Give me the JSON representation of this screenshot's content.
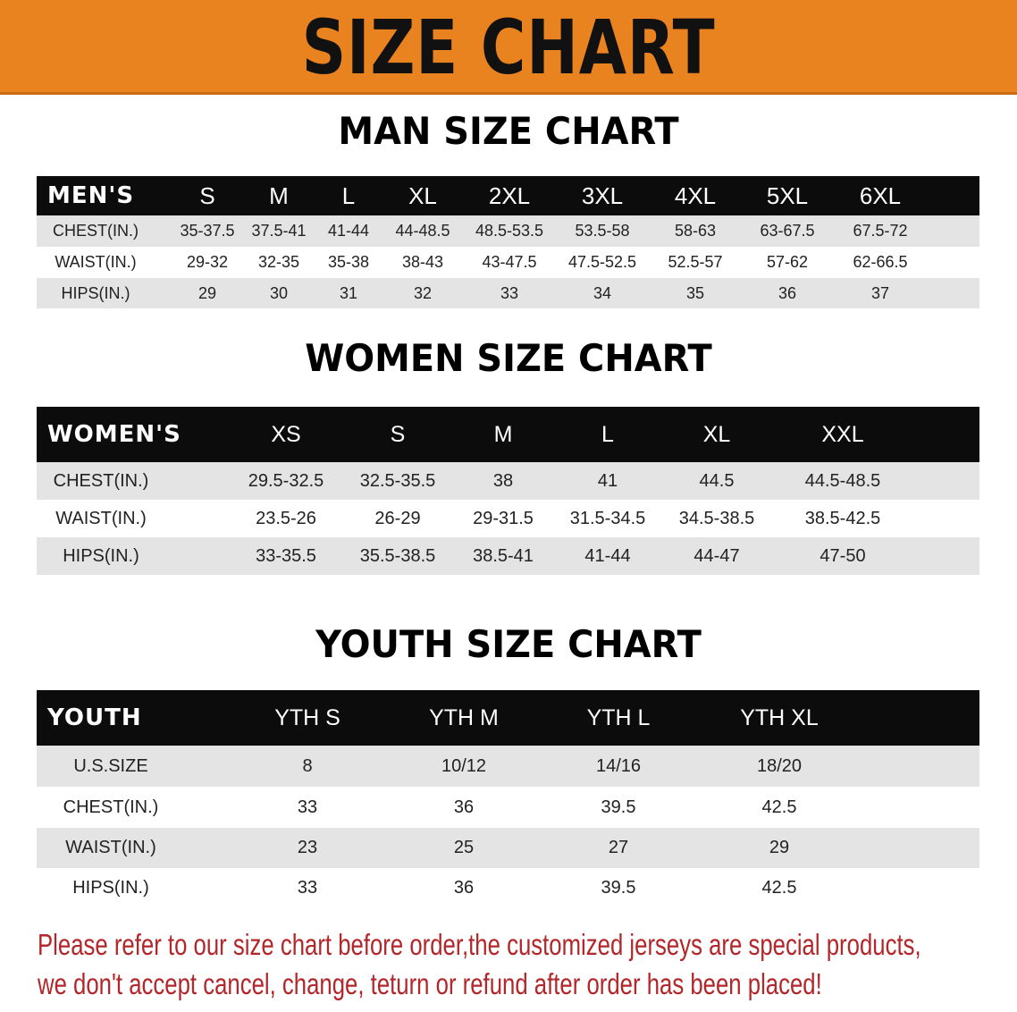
{
  "banner": {
    "title": "SIZE CHART",
    "color": "#e98320"
  },
  "men": {
    "title": "MAN SIZE CHART",
    "header": [
      "MEN'S",
      "S",
      "M",
      "L",
      "XL",
      "2XL",
      "3XL",
      "4XL",
      "5XL",
      "6XL"
    ],
    "rows": [
      [
        "CHEST(IN.)",
        "35-37.5",
        "37.5-41",
        "41-44",
        "44-48.5",
        "48.5-53.5",
        "53.5-58",
        "58-63",
        "63-67.5",
        "67.5-72"
      ],
      [
        "WAIST(IN.)",
        "29-32",
        "32-35",
        "35-38",
        "38-43",
        "43-47.5",
        "47.5-52.5",
        "52.5-57",
        "57-62",
        "62-66.5"
      ],
      [
        "HIPS(IN.)",
        "29",
        "30",
        "31",
        "32",
        "33",
        "34",
        "35",
        "36",
        "37"
      ]
    ]
  },
  "women": {
    "title": "WOMEN SIZE CHART",
    "header": [
      "WOMEN'S",
      "XS",
      "S",
      "M",
      "L",
      "XL",
      "XXL"
    ],
    "rows": [
      [
        "CHEST(IN.)",
        "29.5-32.5",
        "32.5-35.5",
        "38",
        "41",
        "44.5",
        "44.5-48.5"
      ],
      [
        "WAIST(IN.)",
        "23.5-26",
        "26-29",
        "29-31.5",
        "31.5-34.5",
        "34.5-38.5",
        "38.5-42.5"
      ],
      [
        "HIPS(IN.)",
        "33-35.5",
        "35.5-38.5",
        "38.5-41",
        "41-44",
        "44-47",
        "47-50"
      ]
    ]
  },
  "youth": {
    "title": "YOUTH SIZE CHART",
    "header": [
      "YOUTH",
      "YTH S",
      "YTH M",
      "YTH L",
      "YTH XL"
    ],
    "rows": [
      [
        "U.S.SIZE",
        "8",
        "10/12",
        "14/16",
        "18/20"
      ],
      [
        "CHEST(IN.)",
        "33",
        "36",
        "39.5",
        "42.5"
      ],
      [
        "WAIST(IN.)",
        "23",
        "25",
        "27",
        "29"
      ],
      [
        "HIPS(IN.)",
        "33",
        "36",
        "39.5",
        "42.5"
      ]
    ]
  },
  "notice": {
    "line1": "Please refer to our size chart before order,the customized jerseys are special products,",
    "line2": "we don't accept cancel, change, teturn or refund after order has been placed!",
    "color": "#b3262a"
  }
}
